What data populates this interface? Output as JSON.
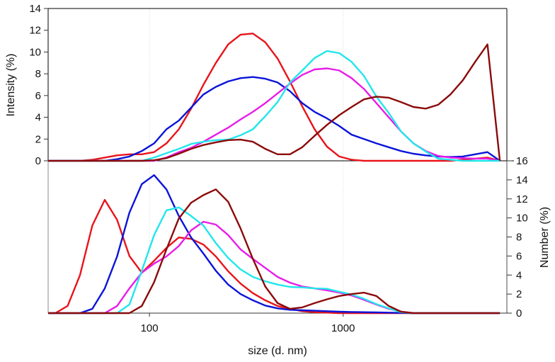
{
  "chart_data": [
    {
      "type": "line",
      "panel": "top",
      "ylabel": "Intensity (%)",
      "xlabel": "size (d. nm)",
      "xscale": "log",
      "xlim": [
        30,
        7000
      ],
      "ylim": [
        0,
        14
      ],
      "yticks": [
        "0",
        "2",
        "4",
        "6",
        "8",
        "10",
        "12",
        "14"
      ],
      "grid": "vertical dotted at 100 and 1000",
      "x": [
        32.7,
        37.8,
        43.8,
        50.7,
        58.8,
        68.1,
        78.8,
        91.3,
        105.7,
        122.4,
        141.8,
        164.2,
        190.1,
        220.2,
        255.0,
        295.3,
        342.0,
        396.1,
        458.7,
        531.2,
        615.1,
        712.4,
        825.0,
        955.4,
        1106,
        1281,
        1484,
        1718,
        1990,
        2305,
        2669,
        3091,
        3580,
        4145,
        4801,
        5560,
        6439
      ],
      "series": [
        {
          "name": "red",
          "color": "#e8141b",
          "values": [
            0,
            0,
            0,
            0.1,
            0.3,
            0.5,
            0.6,
            0.6,
            0.8,
            1.6,
            2.9,
            4.8,
            7.0,
            9.0,
            10.7,
            11.6,
            11.7,
            10.9,
            9.4,
            7.3,
            5.0,
            2.9,
            1.3,
            0.4,
            0.1,
            0,
            0,
            0,
            0,
            0,
            0,
            0,
            0,
            0.1,
            0.2,
            0.3,
            0
          ]
        },
        {
          "name": "blue",
          "color": "#0a14d8",
          "values": [
            0,
            0,
            0,
            0,
            0,
            0.15,
            0.4,
            0.9,
            1.6,
            2.9,
            3.7,
            4.9,
            6.1,
            6.8,
            7.3,
            7.6,
            7.7,
            7.55,
            7.2,
            6.4,
            5.3,
            4.5,
            3.9,
            3.2,
            2.4,
            2.0,
            1.6,
            1.25,
            0.9,
            0.65,
            0.5,
            0.4,
            0.35,
            0.4,
            0.6,
            0.8,
            0
          ]
        },
        {
          "name": "magenta",
          "color": "#e81ce8",
          "values": [
            0,
            0,
            0,
            0,
            0,
            0,
            0,
            0,
            0,
            0.3,
            0.8,
            1.2,
            1.75,
            2.4,
            3.05,
            3.8,
            4.5,
            5.3,
            6.2,
            7.1,
            7.9,
            8.4,
            8.5,
            8.3,
            7.6,
            6.6,
            5.3,
            4.0,
            2.7,
            1.6,
            0.9,
            0.45,
            0.3,
            0.25,
            0.2,
            0.2,
            0
          ]
        },
        {
          "name": "cyan",
          "color": "#22e6ec",
          "values": [
            0,
            0,
            0,
            0,
            0,
            0,
            0,
            0,
            0.3,
            0.7,
            1.1,
            1.55,
            1.75,
            1.9,
            1.95,
            2.35,
            2.9,
            4.1,
            5.4,
            7.2,
            8.3,
            9.45,
            10.1,
            9.9,
            9.1,
            7.8,
            5.9,
            4.4,
            2.7,
            1.6,
            0.85,
            0.2,
            0.1,
            0,
            0,
            0,
            0
          ]
        },
        {
          "name": "darkred",
          "color": "#8b0a0a",
          "values": [
            0,
            0,
            0,
            0,
            0,
            0,
            0,
            0,
            0.05,
            0.25,
            0.65,
            1.1,
            1.45,
            1.7,
            1.9,
            1.95,
            1.75,
            1.1,
            0.6,
            0.6,
            1.25,
            2.3,
            3.3,
            4.2,
            4.95,
            5.65,
            5.9,
            5.8,
            5.4,
            4.95,
            4.8,
            5.15,
            6.1,
            7.4,
            9.1,
            10.7,
            0
          ]
        }
      ]
    },
    {
      "type": "line",
      "panel": "bottom",
      "ylabel": "Number (%)",
      "xlabel": "size (d. nm)",
      "xscale": "log",
      "xlim": [
        30,
        7000
      ],
      "ylim": [
        0,
        16
      ],
      "yticks": [
        "0",
        "2",
        "4",
        "6",
        "8",
        "10",
        "12",
        "14",
        "16"
      ],
      "xticks": [
        "100",
        "1000"
      ],
      "x": [
        32.7,
        37.8,
        43.8,
        50.7,
        58.8,
        68.1,
        78.8,
        91.3,
        105.7,
        122.4,
        141.8,
        164.2,
        190.1,
        220.2,
        255.0,
        295.3,
        342.0,
        396.1,
        458.7,
        531.2,
        615.1,
        712.4,
        825.0,
        955.4,
        1106,
        1281,
        1484,
        1718,
        1990,
        2305,
        2669,
        3091,
        3580,
        4145,
        4801,
        5560,
        6439
      ],
      "series": [
        {
          "name": "red",
          "color": "#e8141b",
          "values": [
            0,
            0.75,
            4.0,
            9.2,
            11.9,
            9.8,
            6.0,
            4.25,
            5.5,
            6.85,
            7.95,
            7.8,
            7.2,
            5.95,
            4.4,
            3.1,
            2.1,
            1.35,
            0.75,
            0.45,
            0.2,
            0.1,
            0.05,
            0,
            0,
            0,
            0,
            0,
            0,
            0,
            0,
            0,
            0,
            0,
            0,
            0,
            0
          ]
        },
        {
          "name": "blue",
          "color": "#0a14d8",
          "values": [
            0,
            0,
            0,
            0.45,
            2.6,
            5.95,
            10.55,
            13.55,
            14.5,
            13.0,
            10.2,
            7.95,
            6.25,
            4.45,
            3.0,
            2.0,
            1.35,
            0.8,
            0.5,
            0.35,
            0.3,
            0.25,
            0.2,
            0.15,
            0.12,
            0.1,
            0.08,
            0.05,
            0.02,
            0,
            0,
            0,
            0,
            0,
            0,
            0,
            0
          ]
        },
        {
          "name": "magenta",
          "color": "#e81ce8",
          "values": [
            0,
            0,
            0,
            0,
            0,
            0.75,
            2.6,
            4.25,
            5.2,
            5.95,
            7.05,
            8.7,
            9.6,
            9.3,
            8.2,
            6.7,
            5.7,
            4.75,
            3.8,
            3.2,
            2.8,
            2.6,
            2.4,
            2.15,
            1.85,
            1.4,
            0.9,
            0.45,
            0.15,
            0,
            0,
            0,
            0,
            0,
            0,
            0,
            0
          ]
        },
        {
          "name": "cyan",
          "color": "#22e6ec",
          "values": [
            0,
            0,
            0,
            0,
            0,
            0,
            0.9,
            4.45,
            8.2,
            10.8,
            11.1,
            10.2,
            9.2,
            7.35,
            5.8,
            4.6,
            3.8,
            3.35,
            3.0,
            2.75,
            2.7,
            2.6,
            2.55,
            2.25,
            1.95,
            1.5,
            0.95,
            0.5,
            0.1,
            0,
            0,
            0,
            0,
            0,
            0,
            0,
            0
          ]
        },
        {
          "name": "darkred",
          "color": "#8b0a0a",
          "values": [
            0,
            0,
            0,
            0,
            0,
            0,
            0,
            0.75,
            3.25,
            6.7,
            9.95,
            11.6,
            12.4,
            13.0,
            11.7,
            8.9,
            5.7,
            2.8,
            1.05,
            0.45,
            0.6,
            1.05,
            1.45,
            1.8,
            2.0,
            2.15,
            1.8,
            0.75,
            0.15,
            0,
            0,
            0,
            0,
            0,
            0,
            0,
            0
          ]
        }
      ]
    }
  ]
}
